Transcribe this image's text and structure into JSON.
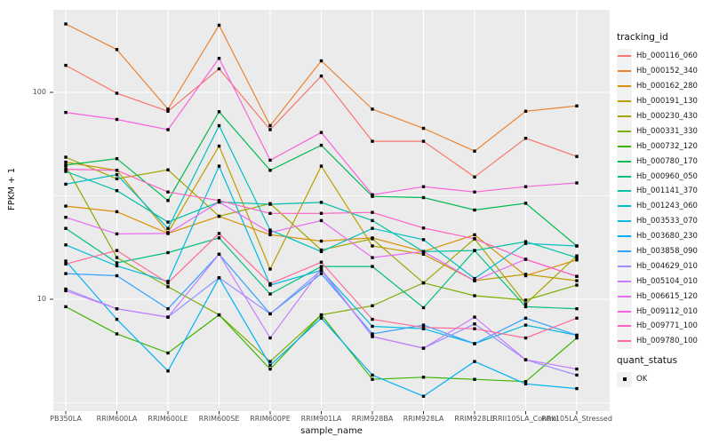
{
  "figure": {
    "ylabel": "FPKM + 1",
    "xlabel": "sample_name",
    "y_tick_labels": [
      "100",
      "10"
    ],
    "legend_title": "tracking_id",
    "quant_title": "quant_status",
    "quant_items": [
      {
        "label": "OK"
      }
    ]
  },
  "chart_data": {
    "type": "line",
    "title": "",
    "xlabel": "sample_name",
    "ylabel": "FPKM + 1",
    "y_scale": "log10",
    "ylim": [
      2.9,
      251
    ],
    "y_major_ticks": [
      100,
      10
    ],
    "y_minor_gridlines": [
      31.6,
      3.16
    ],
    "grid": "white-on-gray-panel",
    "panel_bg": "#EBEBEB",
    "legend_position": "right",
    "legend_title": "tracking_id",
    "point_marker": "black-square",
    "quant_status_legend": {
      "title": "quant_status",
      "items": [
        "OK"
      ]
    },
    "x_categories": [
      "PB350LA",
      "RRIM600LA",
      "RRIM600LE",
      "RRIM600SE",
      "RRIM600PE",
      "RRIM901LA",
      "RRIM928BA",
      "RRIM928LA",
      "RRIM928LE",
      "RRII105LA_Control",
      "RRII105LA_Stressed"
    ],
    "series": [
      {
        "name": "Hb_000116_060",
        "color": "#F8766D",
        "values": [
          135,
          99,
          81,
          130,
          66,
          120,
          58,
          58,
          39,
          60,
          49
        ]
      },
      {
        "name": "Hb_000152_340",
        "color": "#EA8331",
        "values": [
          214,
          161,
          83,
          211,
          69,
          142,
          83,
          67,
          52,
          81,
          86
        ]
      },
      {
        "name": "Hb_000162_280",
        "color": "#D89000",
        "values": [
          28.2,
          26.5,
          20.8,
          25.2,
          20.5,
          19.1,
          19.8,
          17,
          20.5,
          13,
          15.5
        ]
      },
      {
        "name": "Hb_000191_130",
        "color": "#C09B00",
        "values": [
          46,
          42,
          21,
          55,
          14,
          44,
          18.1,
          16.5,
          12.3,
          13.2,
          12.3
        ]
      },
      {
        "name": "Hb_000230_430",
        "color": "#A3A500",
        "values": [
          48.6,
          38.2,
          42.2,
          25.2,
          29,
          17.3,
          19.6,
          12,
          19.6,
          9.5,
          16.2
        ]
      },
      {
        "name": "Hb_000331_330",
        "color": "#7CAE00",
        "values": [
          44,
          15.9,
          11.5,
          8.4,
          5,
          8.4,
          9.3,
          12,
          10.4,
          9.9,
          11.7
        ]
      },
      {
        "name": "Hb_000732_120",
        "color": "#39B600",
        "values": [
          9.2,
          6.8,
          5.5,
          8.4,
          4.6,
          8.4,
          4.1,
          4.2,
          4.1,
          4,
          6.5
        ]
      },
      {
        "name": "Hb_000780_170",
        "color": "#00BB4E",
        "values": [
          44.5,
          47.8,
          30,
          80.6,
          42,
          55.5,
          31.4,
          31,
          27,
          29.1,
          18.1
        ]
      },
      {
        "name": "Hb_000960_050",
        "color": "#00BF7D",
        "values": [
          22,
          15,
          16.8,
          19.8,
          10.6,
          14.4,
          14.4,
          9.1,
          17.2,
          9.2,
          9
        ]
      },
      {
        "name": "Hb_001141_370",
        "color": "#00C1A3",
        "values": [
          41.5,
          33.5,
          23.6,
          29.5,
          28.8,
          29.4,
          24,
          17,
          17.2,
          19,
          15.9
        ]
      },
      {
        "name": "Hb_001243_060",
        "color": "#00BFC4",
        "values": [
          36,
          40,
          22,
          69,
          21.6,
          17,
          22,
          19.4,
          12.6,
          18.6,
          18.1
        ]
      },
      {
        "name": "Hb_003533_070",
        "color": "#00BAE0",
        "values": [
          18.3,
          14.5,
          12.2,
          44,
          11.7,
          13.8,
          7.4,
          7.2,
          6.1,
          7.5,
          6.7
        ]
      },
      {
        "name": "Hb_003680_230",
        "color": "#00B0F6",
        "values": [
          15.3,
          8,
          4.5,
          12.7,
          4.8,
          8.1,
          4.3,
          3.4,
          5,
          3.9,
          3.7
        ]
      },
      {
        "name": "Hb_003858_090",
        "color": "#35A2FF",
        "values": [
          13.3,
          13,
          9,
          16.5,
          8.5,
          13.3,
          6.8,
          7.5,
          6.1,
          8.1,
          6.7
        ]
      },
      {
        "name": "Hb_004629_010",
        "color": "#9590FF",
        "values": [
          11.2,
          9,
          8.2,
          12.7,
          8.5,
          13.8,
          6.6,
          5.8,
          7.6,
          5.1,
          4.3
        ]
      },
      {
        "name": "Hb_005104_010",
        "color": "#C77CFF",
        "values": [
          11,
          9,
          8.2,
          16.5,
          6.5,
          14,
          6.6,
          5.8,
          8.2,
          5.1,
          4.6
        ]
      },
      {
        "name": "Hb_006615_120",
        "color": "#E76BF3",
        "values": [
          24.9,
          20.7,
          20.8,
          29.5,
          21,
          24,
          15.9,
          17,
          12.3,
          15.6,
          12.9
        ]
      },
      {
        "name": "Hb_009112_010",
        "color": "#FA62DB",
        "values": [
          80,
          74,
          66,
          146,
          47,
          64,
          32,
          35,
          33,
          35,
          36.5
        ]
      },
      {
        "name": "Hb_009771_100",
        "color": "#FF61C3",
        "values": [
          42.5,
          42,
          33,
          30,
          26,
          26,
          26.3,
          22.1,
          19.6,
          15.6,
          12.9
        ]
      },
      {
        "name": "Hb_009780_100",
        "color": "#FF6A98",
        "values": [
          14.8,
          17.2,
          12,
          20.8,
          11.9,
          15.1,
          8,
          7.3,
          7.2,
          6.5,
          8.1
        ]
      }
    ]
  }
}
